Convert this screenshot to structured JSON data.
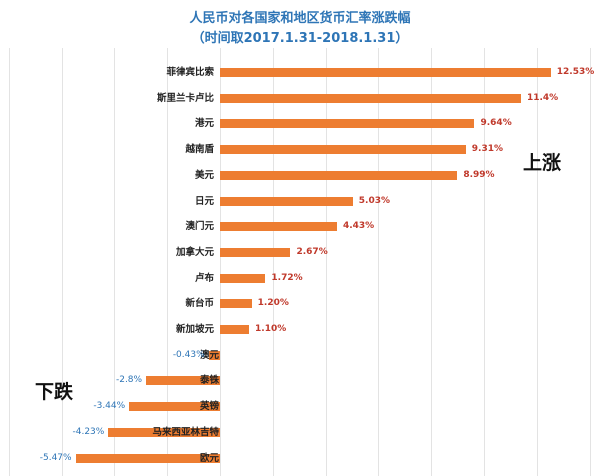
{
  "chart_data": {
    "type": "bar",
    "orientation": "horizontal",
    "title": "人民币对各国家和地区货币汇率涨跌幅",
    "subtitle": "（时间取2017.1.31-2018.1.31）",
    "xlabel": "",
    "ylabel": "",
    "xlim": [
      -8,
      14
    ],
    "grid_step": 2,
    "grid": true,
    "legend": null,
    "bar_color": "#ed7d31",
    "positive_label_color": "#c0392b",
    "negative_label_color": "#2e75b6",
    "categories": [
      "菲律宾比索",
      "斯里兰卡卢比",
      "港元",
      "越南盾",
      "美元",
      "日元",
      "澳门元",
      "加拿大元",
      "卢布",
      "新台币",
      "新加坡元",
      "澳元",
      "泰铢",
      "英镑",
      "马来西亚林吉特",
      "欧元"
    ],
    "values": [
      12.53,
      11.4,
      9.64,
      9.31,
      8.99,
      5.03,
      4.43,
      2.67,
      1.72,
      1.2,
      1.1,
      -0.43,
      -2.8,
      -3.44,
      -4.23,
      -5.47
    ],
    "value_labels": [
      "12.53%",
      "11.4%",
      "9.64%",
      "9.31%",
      "8.99%",
      "5.03%",
      "4.43%",
      "2.67%",
      "1.72%",
      "1.20%",
      "1.10%",
      "-0.43%",
      "-2.8%",
      "-3.44%",
      "-4.23%",
      "-5.47%"
    ],
    "annotations": [
      {
        "text": "上涨",
        "position": "right-upper"
      },
      {
        "text": "下跌",
        "position": "left-lower"
      }
    ]
  },
  "header": {
    "title": "人民币对各国家和地区货币汇率涨跌幅",
    "subtitle": "（时间取2017.1.31-2018.1.31）"
  },
  "annotations": {
    "up": "上涨",
    "down": "下跌"
  }
}
